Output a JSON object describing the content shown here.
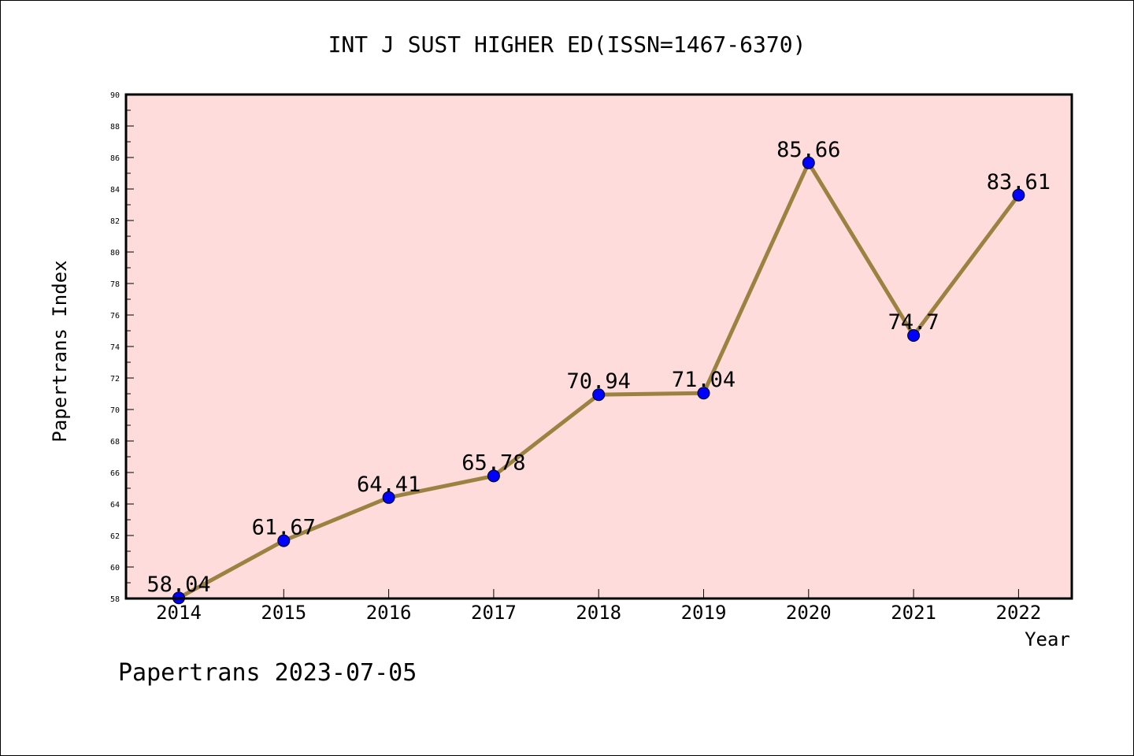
{
  "chart_data": {
    "type": "line",
    "title": "INT J SUST HIGHER ED(ISSN=1467-6370)",
    "xlabel": "Year",
    "ylabel": "Papertrans Index",
    "footer": "Papertrans 2023-07-05",
    "categories": [
      "2014",
      "2015",
      "2016",
      "2017",
      "2018",
      "2019",
      "2020",
      "2021",
      "2022"
    ],
    "values": [
      58.04,
      61.67,
      64.41,
      65.78,
      70.94,
      71.04,
      85.66,
      74.7,
      83.61
    ],
    "value_labels": [
      "58.04",
      "61.67",
      "64.41",
      "65.78",
      "70.94",
      "71.04",
      "85.66",
      "74.7",
      "83.61"
    ],
    "ylim": [
      58,
      90
    ],
    "yticks": [
      "58",
      "60",
      "62",
      "64",
      "66",
      "68",
      "70",
      "72",
      "74",
      "76",
      "78",
      "80",
      "82",
      "84",
      "86",
      "88",
      "90"
    ],
    "grid": false,
    "colors": {
      "plot_background": "#ffdcdc",
      "line": "#9b8240",
      "marker": "#0000ff",
      "axis": "#000000"
    }
  }
}
